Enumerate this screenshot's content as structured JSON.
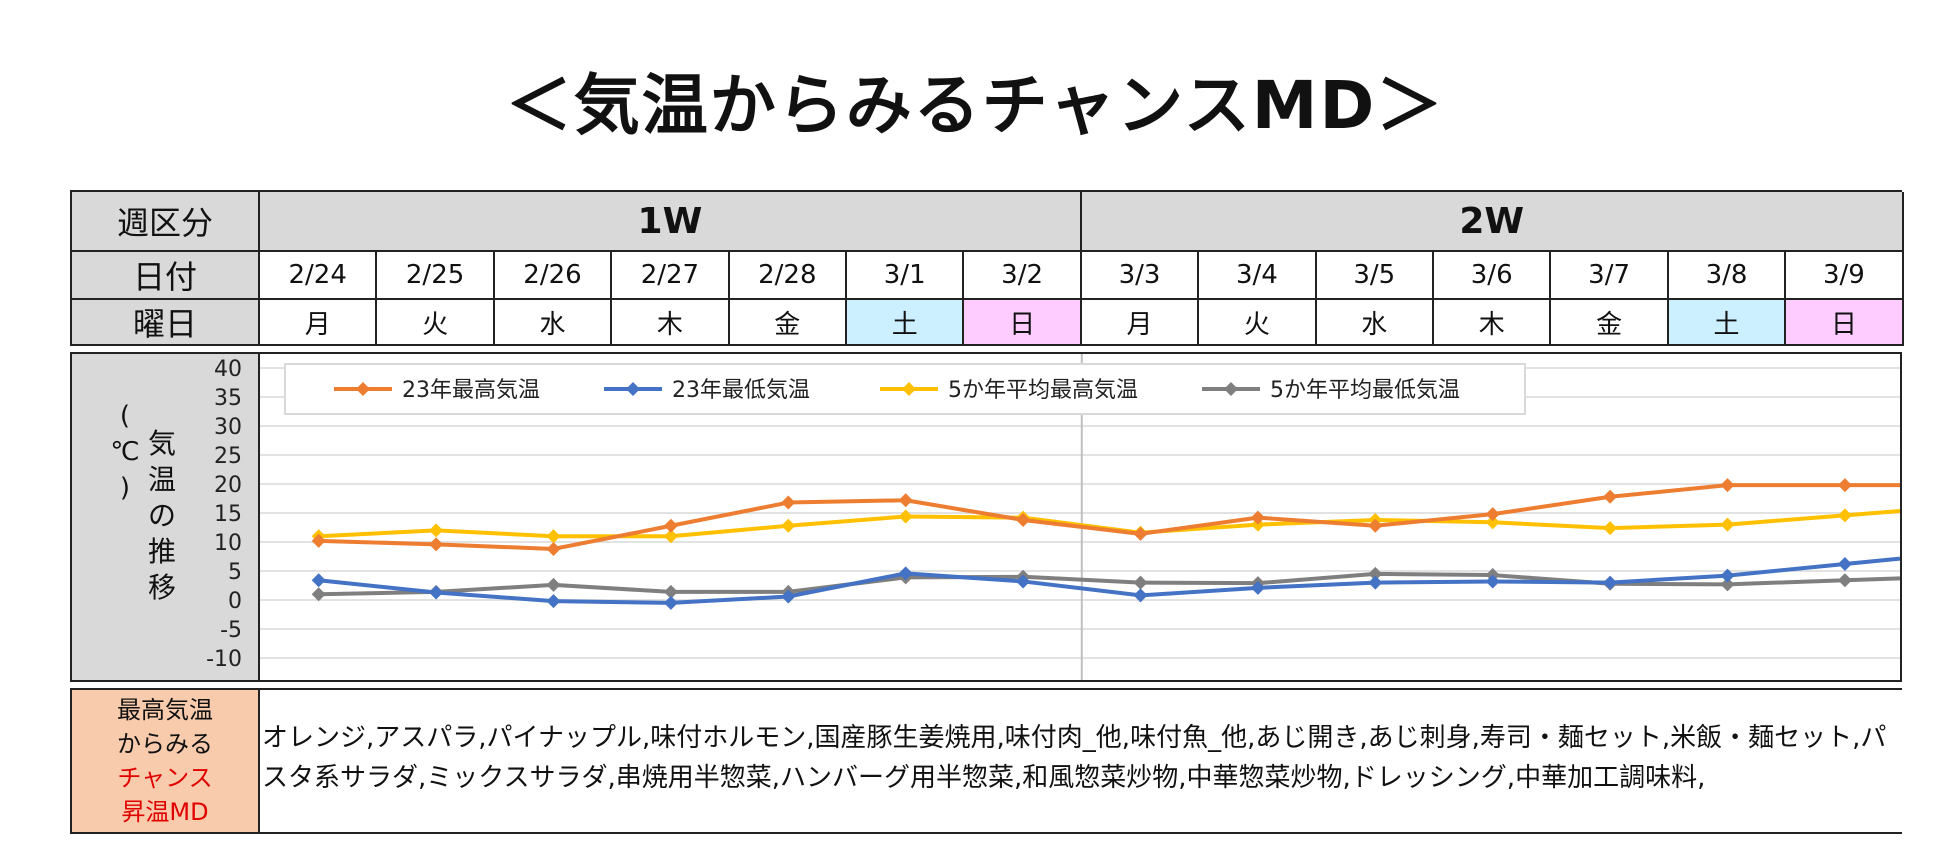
{
  "title": "＜気温からみるチャンスMD＞",
  "table": {
    "week_label": "週区分",
    "date_label": "日付",
    "weekday_label": "曜日",
    "weeks": [
      "1W",
      "2W"
    ],
    "dates": [
      "2/24",
      "2/25",
      "2/26",
      "2/27",
      "2/28",
      "3/1",
      "3/2",
      "3/3",
      "3/4",
      "3/5",
      "3/6",
      "3/7",
      "3/8",
      "3/9"
    ],
    "weekdays": [
      "月",
      "火",
      "水",
      "木",
      "金",
      "土",
      "日",
      "月",
      "火",
      "水",
      "木",
      "金",
      "土",
      "日"
    ]
  },
  "chart_side_label": {
    "col1": [
      "(",
      "℃",
      ")"
    ],
    "col2": [
      "気",
      "温",
      "の",
      "推",
      "移"
    ]
  },
  "chart_data": {
    "type": "line",
    "categories": [
      "2/24",
      "2/25",
      "2/26",
      "2/27",
      "2/28",
      "3/1",
      "3/2",
      "3/3",
      "3/4",
      "3/5",
      "3/6",
      "3/7",
      "3/8",
      "3/9"
    ],
    "ylim": [
      -10,
      40
    ],
    "yticks": [
      40,
      35,
      30,
      25,
      20,
      15,
      10,
      5,
      0,
      -5,
      -10
    ],
    "legend_position": "top",
    "series": [
      {
        "name": "23年最高気温",
        "color": "#ed7d31",
        "values": [
          10.2,
          9.6,
          8.8,
          12.8,
          16.8,
          17.2,
          13.8,
          11.4,
          14.2,
          12.8,
          14.8,
          17.8,
          19.8,
          19.8
        ]
      },
      {
        "name": "23年最低気温",
        "color": "#4472c4",
        "values": [
          3.4,
          1.3,
          -0.2,
          -0.5,
          0.6,
          4.6,
          3.2,
          0.8,
          2.1,
          3.0,
          3.2,
          3.0,
          4.2,
          6.2
        ]
      },
      {
        "name": "5か年平均最高気温",
        "color": "#ffc000",
        "values": [
          11.0,
          12.0,
          11.0,
          11.0,
          12.8,
          14.4,
          14.2,
          11.6,
          13.0,
          13.8,
          13.4,
          12.4,
          13.0,
          14.6
        ]
      },
      {
        "name": "5か年平均最低気温",
        "color": "#7f7f7f",
        "values": [
          1.0,
          1.4,
          2.6,
          1.4,
          1.4,
          3.9,
          4.0,
          3.0,
          2.9,
          4.5,
          4.3,
          2.8,
          2.7,
          3.4
        ]
      }
    ]
  },
  "md": {
    "label_lines": [
      "最高気温",
      "からみる",
      "チャンス",
      "昇温MD"
    ],
    "label_colors": [
      "#111111",
      "#111111",
      "#e00000",
      "#e00000"
    ],
    "text": "オレンジ,アスパラ,パイナップル,味付ホルモン,国産豚生姜焼用,味付肉_他,味付魚_他,あじ開き,あじ刺身,寿司・麺セット,米飯・麺セット,パスタ系サラダ,ミックスサラダ,串焼用半惣菜,ハンバーグ用半惣菜,和風惣菜炒物,中華惣菜炒物,ドレッシング,中華加工調味料,"
  }
}
